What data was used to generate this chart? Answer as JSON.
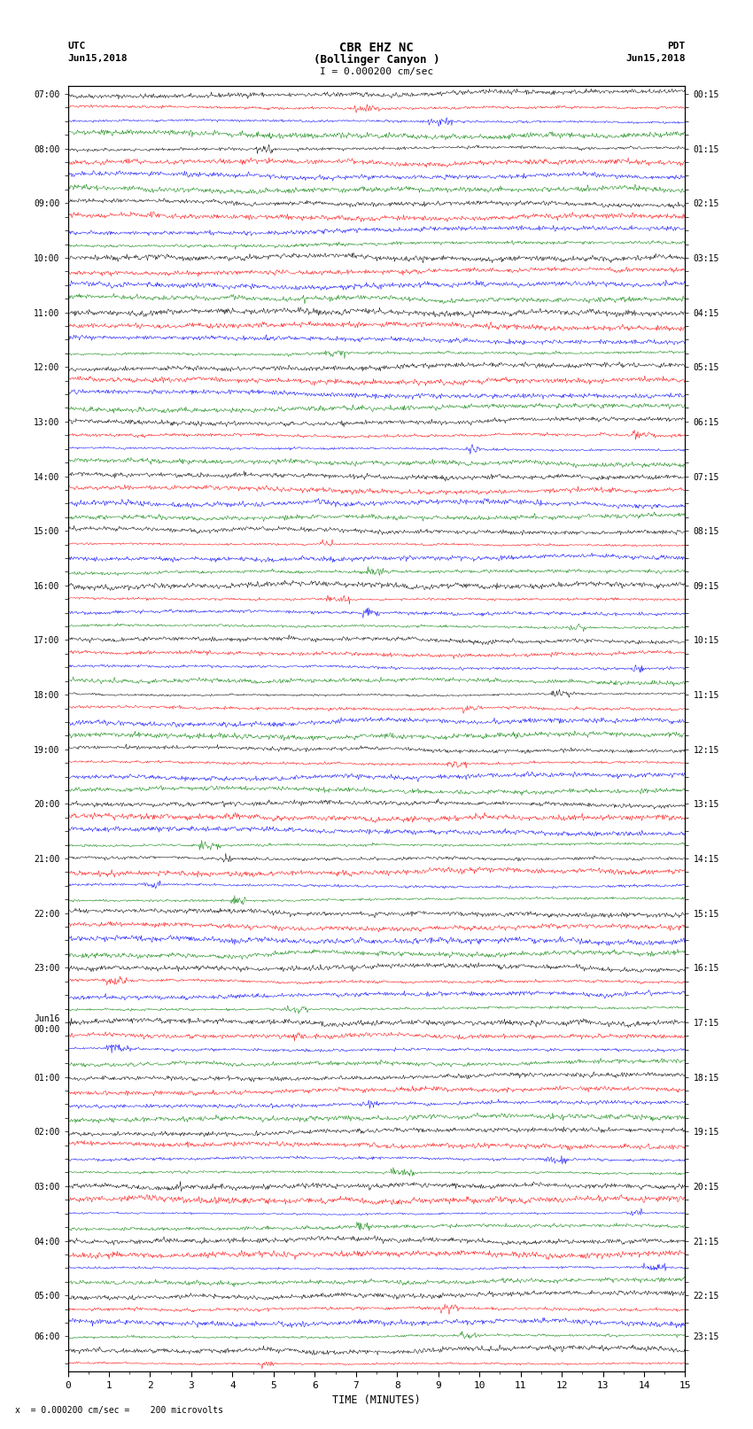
{
  "title_line1": "CBR EHZ NC",
  "title_line2": "(Bollinger Canyon )",
  "title_line3": "I = 0.000200 cm/sec",
  "left_header_line1": "UTC",
  "left_header_line2": "Jun15,2018",
  "right_header_line1": "PDT",
  "right_header_line2": "Jun15,2018",
  "xlabel": "TIME (MINUTES)",
  "footnote": "x  = 0.000200 cm/sec =    200 microvolts",
  "utc_labels": [
    "07:00",
    "",
    "",
    "",
    "08:00",
    "",
    "",
    "",
    "09:00",
    "",
    "",
    "",
    "10:00",
    "",
    "",
    "",
    "11:00",
    "",
    "",
    "",
    "12:00",
    "",
    "",
    "",
    "13:00",
    "",
    "",
    "",
    "14:00",
    "",
    "",
    "",
    "15:00",
    "",
    "",
    "",
    "16:00",
    "",
    "",
    "",
    "17:00",
    "",
    "",
    "",
    "18:00",
    "",
    "",
    "",
    "19:00",
    "",
    "",
    "",
    "20:00",
    "",
    "",
    "",
    "21:00",
    "",
    "",
    "",
    "22:00",
    "",
    "",
    "",
    "23:00",
    "",
    "",
    "",
    "Jun16\n00:00",
    "",
    "",
    "",
    "01:00",
    "",
    "",
    "",
    "02:00",
    "",
    "",
    "",
    "03:00",
    "",
    "",
    "",
    "04:00",
    "",
    "",
    "",
    "05:00",
    "",
    "",
    "06:00",
    "",
    ""
  ],
  "pdt_labels": [
    "00:15",
    "",
    "",
    "",
    "01:15",
    "",
    "",
    "",
    "02:15",
    "",
    "",
    "",
    "03:15",
    "",
    "",
    "",
    "04:15",
    "",
    "",
    "",
    "05:15",
    "",
    "",
    "",
    "06:15",
    "",
    "",
    "",
    "07:15",
    "",
    "",
    "",
    "08:15",
    "",
    "",
    "",
    "09:15",
    "",
    "",
    "",
    "10:15",
    "",
    "",
    "",
    "11:15",
    "",
    "",
    "",
    "12:15",
    "",
    "",
    "",
    "13:15",
    "",
    "",
    "",
    "14:15",
    "",
    "",
    "",
    "15:15",
    "",
    "",
    "",
    "16:15",
    "",
    "",
    "",
    "17:15",
    "",
    "",
    "",
    "18:15",
    "",
    "",
    "",
    "19:15",
    "",
    "",
    "",
    "20:15",
    "",
    "",
    "",
    "21:15",
    "",
    "",
    "",
    "22:15",
    "",
    "",
    "23:15",
    "",
    ""
  ],
  "n_cols": 900,
  "colors_cycle": [
    "black",
    "red",
    "blue",
    "green"
  ],
  "trace_amplitude": 0.38,
  "background_color": "white",
  "plot_bg_color": "white",
  "figsize": [
    8.5,
    16.13
  ],
  "dpi": 100,
  "xmin": 0,
  "xmax": 15,
  "xticks": [
    0,
    1,
    2,
    3,
    4,
    5,
    6,
    7,
    8,
    9,
    10,
    11,
    12,
    13,
    14,
    15
  ]
}
